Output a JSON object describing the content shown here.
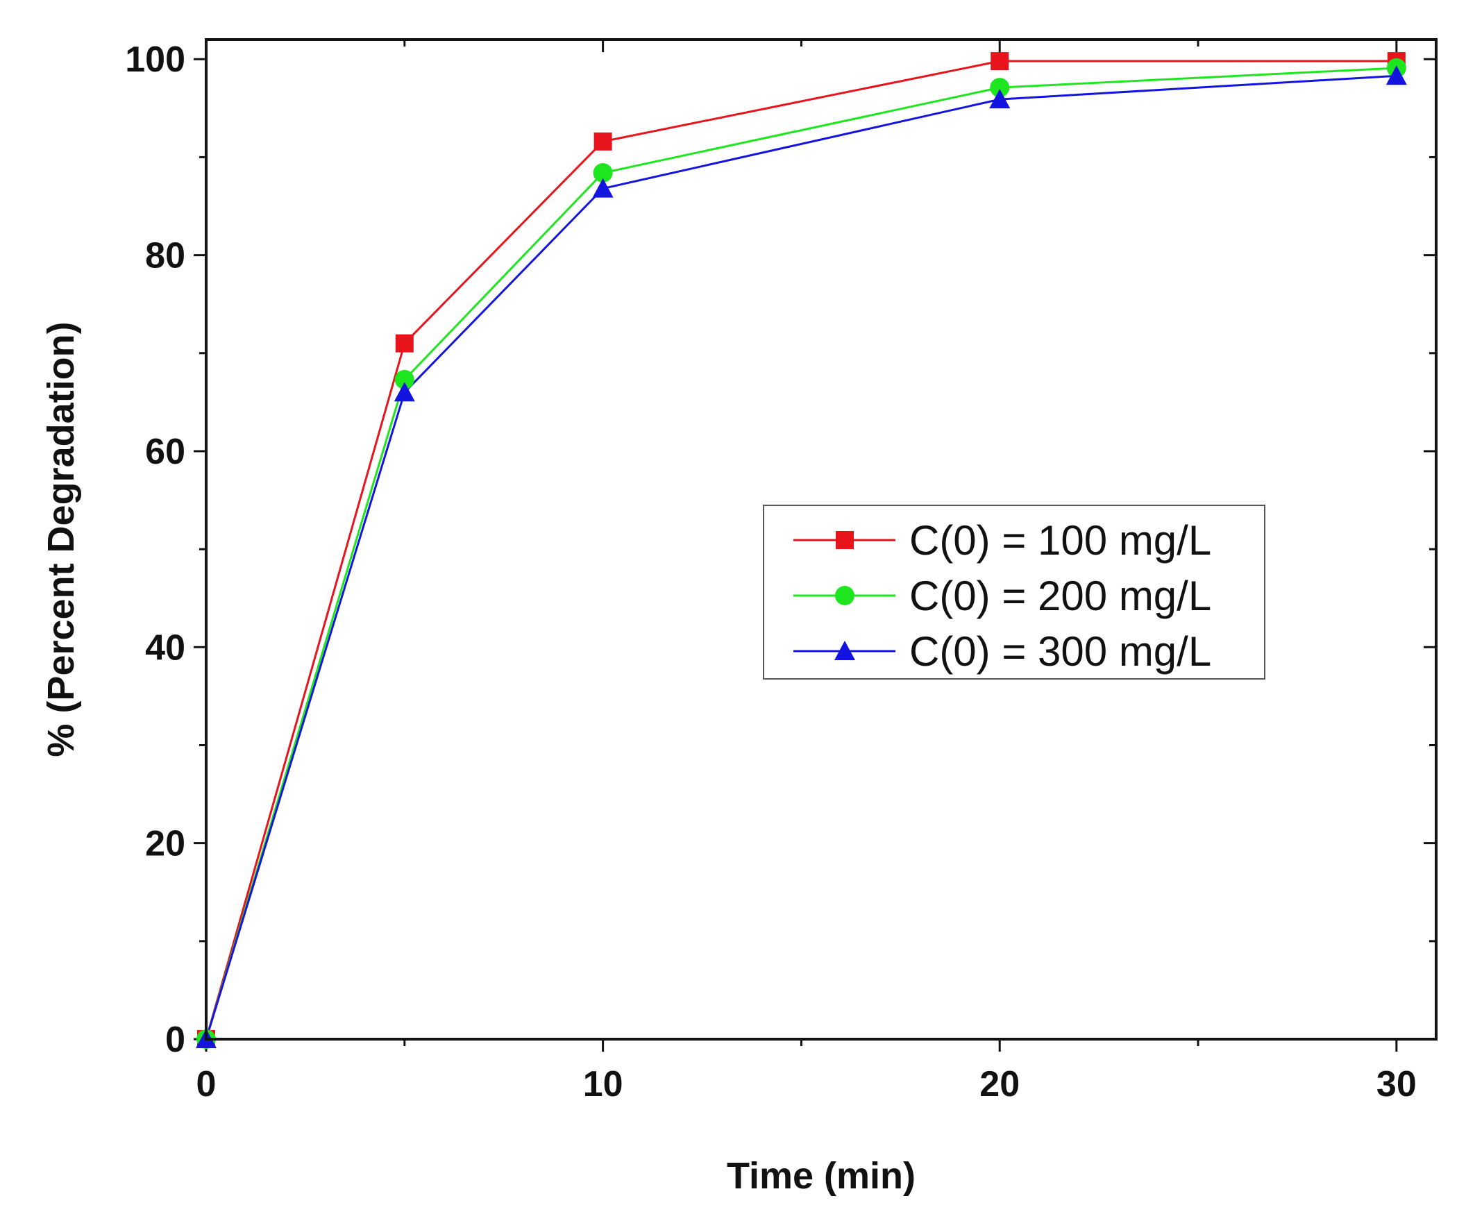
{
  "chart_data": {
    "type": "line",
    "title": "",
    "xlabel": "Time (min)",
    "ylabel": "% (Percent Degradation)",
    "xlim": [
      0,
      31
    ],
    "ylim": [
      0,
      102
    ],
    "xticks": [
      0,
      10,
      20,
      30
    ],
    "yticks": [
      0,
      20,
      40,
      60,
      80,
      100
    ],
    "x_minor_ticks": [
      5,
      15,
      25
    ],
    "y_minor_ticks": [
      10,
      30,
      50,
      70,
      90
    ],
    "grid": false,
    "legend_position": "center-right",
    "x": [
      0,
      5,
      10,
      20,
      30
    ],
    "series": [
      {
        "name": "C(0) = 100 mg/L",
        "color": "#e8141c",
        "marker": "square",
        "values": [
          0,
          71,
          91.6,
          99.8,
          99.8
        ]
      },
      {
        "name": "C(0) = 200 mg/L",
        "color": "#1ee61e",
        "marker": "circle",
        "values": [
          0,
          67.3,
          88.4,
          97.1,
          99.1
        ]
      },
      {
        "name": "C(0) = 300 mg/L",
        "color": "#1414e0",
        "marker": "triangle",
        "values": [
          0,
          66,
          86.8,
          95.9,
          98.3
        ]
      }
    ]
  }
}
